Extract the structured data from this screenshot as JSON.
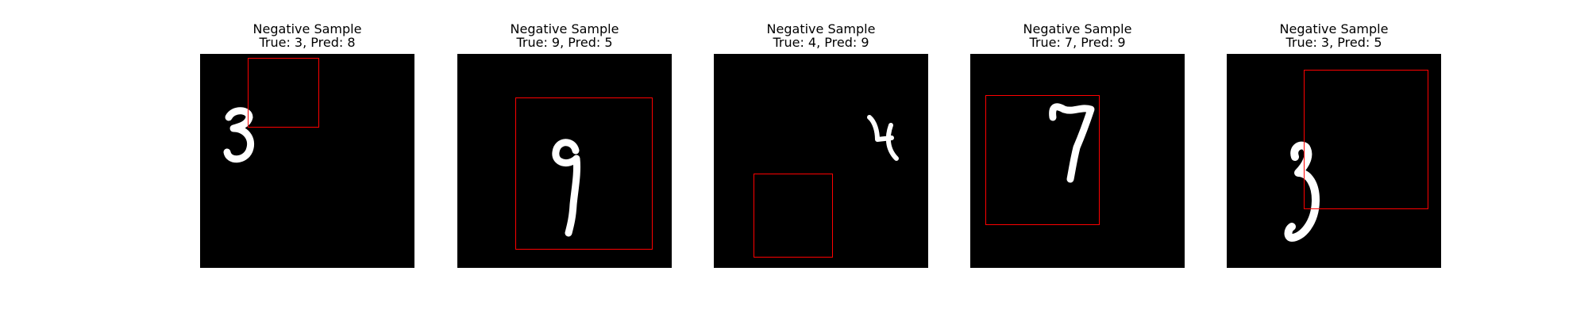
{
  "colors": {
    "background": "#ffffff",
    "image_background": "#000000",
    "digit_stroke": "#ffffff",
    "bbox": "#ff0000"
  },
  "panels": [
    {
      "title": "Negative Sample",
      "subtitle": "True: 3, Pred: 8",
      "true_label": 3,
      "pred_label": 8
    },
    {
      "title": "Negative Sample",
      "subtitle": "True: 9, Pred: 5",
      "true_label": 9,
      "pred_label": 5
    },
    {
      "title": "Negative Sample",
      "subtitle": "True: 4, Pred: 9",
      "true_label": 4,
      "pred_label": 9
    },
    {
      "title": "Negative Sample",
      "subtitle": "True: 7, Pred: 9",
      "true_label": 7,
      "pred_label": 9
    },
    {
      "title": "Negative Sample",
      "subtitle": "True: 3, Pred: 5",
      "true_label": 3,
      "pred_label": 5
    }
  ]
}
